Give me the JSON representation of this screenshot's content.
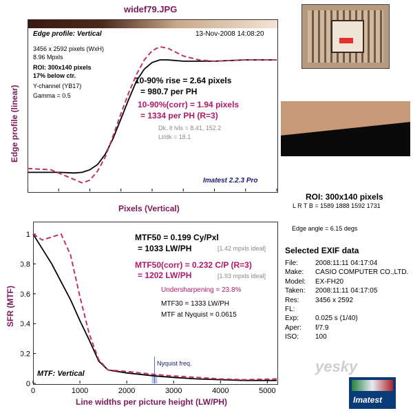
{
  "file_title": "widef79.JPG",
  "top_panel": {
    "profile_label": "Edge profile: Vertical",
    "date": "13-Nov-2008 14:08:20",
    "info_lines": [
      "3456 x 2592 pixels (WxH)",
      "8.96 Mpxls"
    ],
    "roi_label": "ROI: 300x140 pixels",
    "below_ctr": "17% below ctr.",
    "channel": "Y-channel  (YB17)",
    "gamma": "Gamma = 0.5",
    "rise": "10-90% rise = 2.64 pixels",
    "rise_ph": "= 980.7 per PH",
    "corr": "10-90%(corr) = 1.94 pixels",
    "corr_ph": "= 1334 per PH   (R=3)",
    "dk": "Dk, lt lvls = 8.41, 152.2",
    "ltdk": "Lt/dk = 18.1",
    "version": "Imatest 2.2.3 Pro"
  },
  "bottom_panel": {
    "mtf50": "MTF50 = 0.199 Cy/Pxl",
    "mtf50_lw": "= 1033 LW/PH",
    "mtf50_ideal": "[1.42 mpxls ideal]",
    "mtf50c": "MTF50(corr) = 0.232 C/P  (R=3)",
    "mtf50c_lw": "= 1202 LW/PH",
    "mtf50c_ideal": "[1.93 mpxls ideal]",
    "undersharp": "Undersharpening = 23.8%",
    "mtf30": "MTF30 = 1333 LW/PH",
    "nyq_val": "MTF at Nyquist = 0.0615",
    "nyq_label": "Nyquist freq.",
    "mtf_label": "MTF: Vertical"
  },
  "right_info": {
    "roi": "ROI: 300x140 pixels",
    "lrtb": "L R  T B = 1589 1888   1592 1731",
    "edge_angle": "Edge angle = 6.15 degs",
    "exif_title": "Selected EXIF data",
    "exif": [
      {
        "k": "File:",
        "v": "2008:11:11 04:17:04"
      },
      {
        "k": "Make:",
        "v": "CASIO COMPUTER CO.,LTD."
      },
      {
        "k": "Model:",
        "v": "EX-FH20"
      },
      {
        "k": "Taken:",
        "v": "2008:11:11 04:17:05"
      },
      {
        "k": "Res:",
        "v": "3456 x 2592"
      },
      {
        "k": "FL:",
        "v": ""
      },
      {
        "k": "Exp:",
        "v": "0.025 s  (1/40)"
      },
      {
        "k": "Aper:",
        "v": "f/7.9"
      },
      {
        "k": "ISO:",
        "v": "100"
      }
    ],
    "logo": "Imatest",
    "watermark": "yesky"
  },
  "chart_data": [
    {
      "type": "line",
      "xlabel": "Pixels (Vertical)",
      "ylabel": "Edge profile (linear)",
      "xlim": [
        -6,
        10
      ],
      "ylim": [
        0,
        1
      ],
      "x_ticks": [
        -6,
        -4,
        -2,
        0,
        2,
        4,
        6,
        8,
        10
      ],
      "series": [
        {
          "color": "#000000",
          "style": "solid",
          "x": [
            -6,
            -4,
            -3,
            -2.5,
            -2,
            -1.5,
            -1,
            -0.5,
            0,
            0.5,
            1,
            1.5,
            2,
            2.5,
            3,
            4,
            5,
            6,
            8,
            10
          ],
          "y": [
            0.04,
            0.04,
            0.035,
            0.04,
            0.06,
            0.1,
            0.18,
            0.3,
            0.45,
            0.6,
            0.74,
            0.83,
            0.88,
            0.9,
            0.9,
            0.89,
            0.89,
            0.89,
            0.9,
            0.9
          ]
        },
        {
          "color": "#c0306a",
          "style": "dashed",
          "x": [
            -6,
            -4.5,
            -3.5,
            -2.5,
            -2,
            -1.5,
            -1,
            -0.5,
            0,
            0.5,
            1,
            1.5,
            2,
            2.5,
            3,
            3.5,
            4,
            5,
            6,
            8,
            10
          ],
          "y": [
            0.07,
            0.06,
            0.01,
            -0.04,
            -0.02,
            0.05,
            0.16,
            0.32,
            0.49,
            0.65,
            0.79,
            0.9,
            0.97,
            1.0,
            0.99,
            0.96,
            0.93,
            0.9,
            0.89,
            0.9,
            0.9
          ]
        }
      ]
    },
    {
      "type": "line",
      "xlabel": "Line widths per picture height (LW/PH)",
      "ylabel": "SFR (MTF)",
      "xlim": [
        0,
        5200
      ],
      "ylim": [
        0,
        1
      ],
      "x_ticks": [
        0,
        1000,
        2000,
        3000,
        4000,
        5000
      ],
      "y_ticks": [
        0,
        0.2,
        0.4,
        0.6,
        0.8,
        1
      ],
      "nyquist": 2592,
      "series": [
        {
          "color": "#000000",
          "style": "solid",
          "x": [
            0,
            200,
            400,
            600,
            800,
            1000,
            1200,
            1400,
            1600,
            2000,
            2600,
            3000,
            3500,
            4000,
            4500,
            5200
          ],
          "y": [
            1.0,
            0.9,
            0.8,
            0.68,
            0.56,
            0.42,
            0.29,
            0.15,
            0.09,
            0.07,
            0.05,
            0.04,
            0.03,
            0.025,
            0.02,
            0.02
          ]
        },
        {
          "color": "#c0306a",
          "style": "dashed",
          "x": [
            0,
            200,
            400,
            600,
            800,
            1000,
            1200,
            1400,
            1600,
            2000,
            2600,
            3000,
            3500,
            4000,
            4500,
            5200
          ],
          "y": [
            1.0,
            0.96,
            0.98,
            1.0,
            0.86,
            0.58,
            0.33,
            0.16,
            0.09,
            0.08,
            0.06,
            0.05,
            0.04,
            0.03,
            0.025,
            0.03
          ]
        }
      ]
    }
  ]
}
